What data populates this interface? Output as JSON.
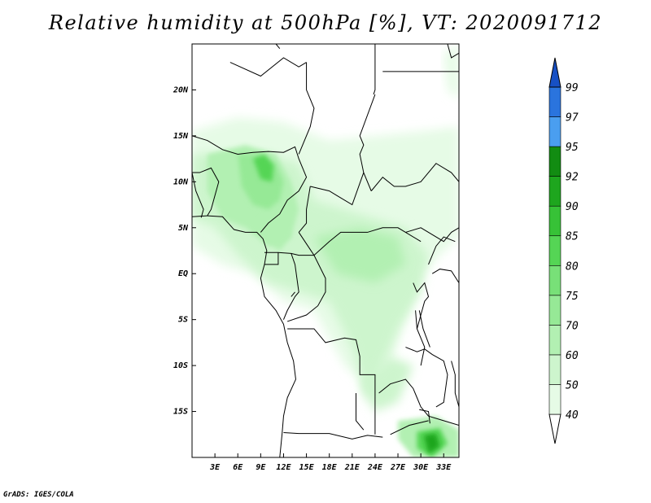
{
  "title": "Relative humidity at 500hPa [%], VT: 2020091712",
  "credit": "GrADS: IGES/COLA",
  "map": {
    "lon_range": [
      0,
      35
    ],
    "lat_range": [
      -20,
      25
    ],
    "x_ticks": [
      {
        "lon": 3,
        "label": "3E"
      },
      {
        "lon": 6,
        "label": "6E"
      },
      {
        "lon": 9,
        "label": "9E"
      },
      {
        "lon": 12,
        "label": "12E"
      },
      {
        "lon": 15,
        "label": "15E"
      },
      {
        "lon": 18,
        "label": "18E"
      },
      {
        "lon": 21,
        "label": "21E"
      },
      {
        "lon": 24,
        "label": "24E"
      },
      {
        "lon": 27,
        "label": "27E"
      },
      {
        "lon": 30,
        "label": "30E"
      },
      {
        "lon": 33,
        "label": "33E"
      }
    ],
    "y_ticks": [
      {
        "lat": 20,
        "label": "20N"
      },
      {
        "lat": 15,
        "label": "15N"
      },
      {
        "lat": 10,
        "label": "10N"
      },
      {
        "lat": 5,
        "label": "5N"
      },
      {
        "lat": 0,
        "label": "EQ"
      },
      {
        "lat": -5,
        "label": "5S"
      },
      {
        "lat": -10,
        "label": "10S"
      },
      {
        "lat": -15,
        "label": "15S"
      }
    ]
  },
  "colorbar": {
    "levels": [
      "40",
      "50",
      "60",
      "70",
      "75",
      "80",
      "85",
      "90",
      "92",
      "95",
      "97",
      "99"
    ],
    "colors": [
      "#ffffff",
      "#e6fbe6",
      "#cdf5cd",
      "#b2f0b2",
      "#96e996",
      "#78e078",
      "#55d555",
      "#37c237",
      "#1ea61e",
      "#128c12",
      "#4a9ef0",
      "#2a74de",
      "#1750c4"
    ]
  },
  "coast_color": "#000000",
  "humid_shades": [
    "#e6fbe6",
    "#cdf5cd",
    "#b2f0b2",
    "#96e996",
    "#55d555",
    "#1ea61e"
  ]
}
